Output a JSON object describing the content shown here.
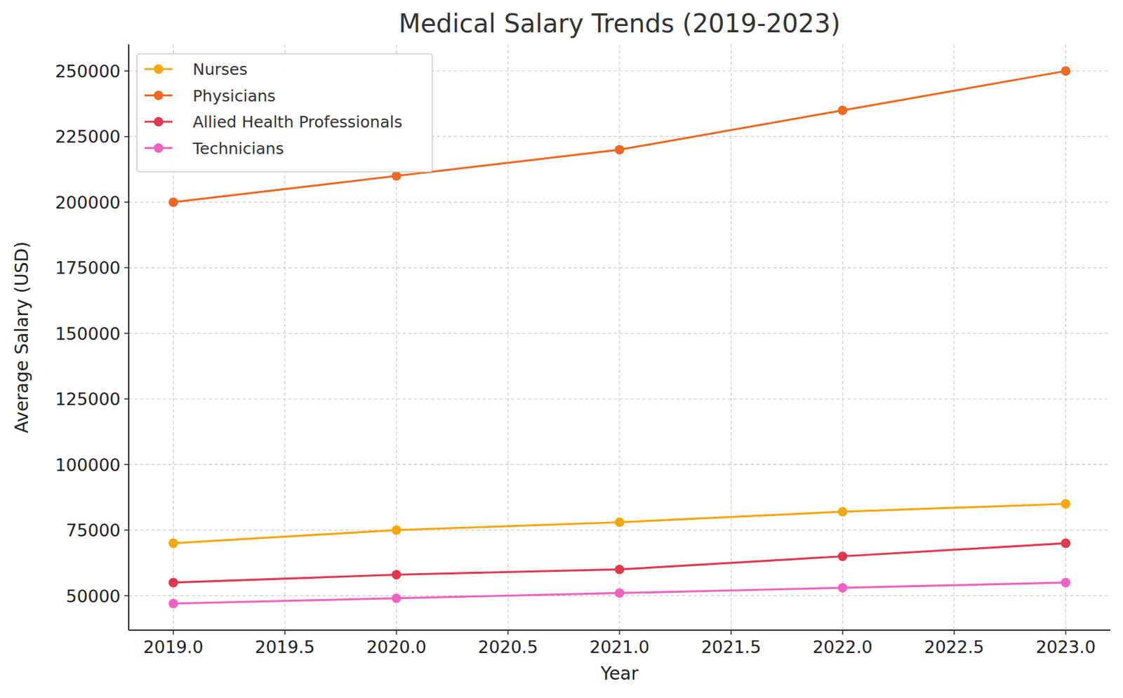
{
  "chart_data": {
    "type": "line",
    "title": "Medical Salary Trends (2019-2023)",
    "x_label": "Year",
    "y_label": "Average Salary (USD)",
    "x": [
      2019,
      2020,
      2021,
      2022,
      2023
    ],
    "series": [
      {
        "name": "Nurses",
        "color": "#f5a70f",
        "values": [
          70000,
          75000,
          78000,
          82000,
          85000
        ]
      },
      {
        "name": "Physicians",
        "color": "#ec6a25",
        "values": [
          200000,
          210000,
          220000,
          235000,
          250000
        ]
      },
      {
        "name": "Allied Health Professionals",
        "color": "#e0394f",
        "values": [
          55000,
          58000,
          60000,
          65000,
          70000
        ]
      },
      {
        "name": "Technicians",
        "color": "#f062c2",
        "values": [
          47000,
          49000,
          51000,
          53000,
          55000
        ]
      }
    ],
    "xlim": [
      2018.8,
      2023.2
    ],
    "xticks": [
      {
        "value": 2019,
        "label": "2019.0"
      },
      {
        "value": 2019.5,
        "label": "2019.5"
      },
      {
        "value": 2020,
        "label": "2020.0"
      },
      {
        "value": 2020.5,
        "label": "2020.5"
      },
      {
        "value": 2021,
        "label": "2021.0"
      },
      {
        "value": 2021.5,
        "label": "2021.5"
      },
      {
        "value": 2022,
        "label": "2022.0"
      },
      {
        "value": 2022.5,
        "label": "2022.5"
      },
      {
        "value": 2023,
        "label": "2023.0"
      }
    ],
    "ylim": [
      36850,
      260150
    ],
    "yticks": [
      50000,
      75000,
      100000,
      125000,
      150000,
      175000,
      200000,
      225000,
      250000
    ],
    "grid": true,
    "legend": "upper left",
    "marker": "circle"
  }
}
